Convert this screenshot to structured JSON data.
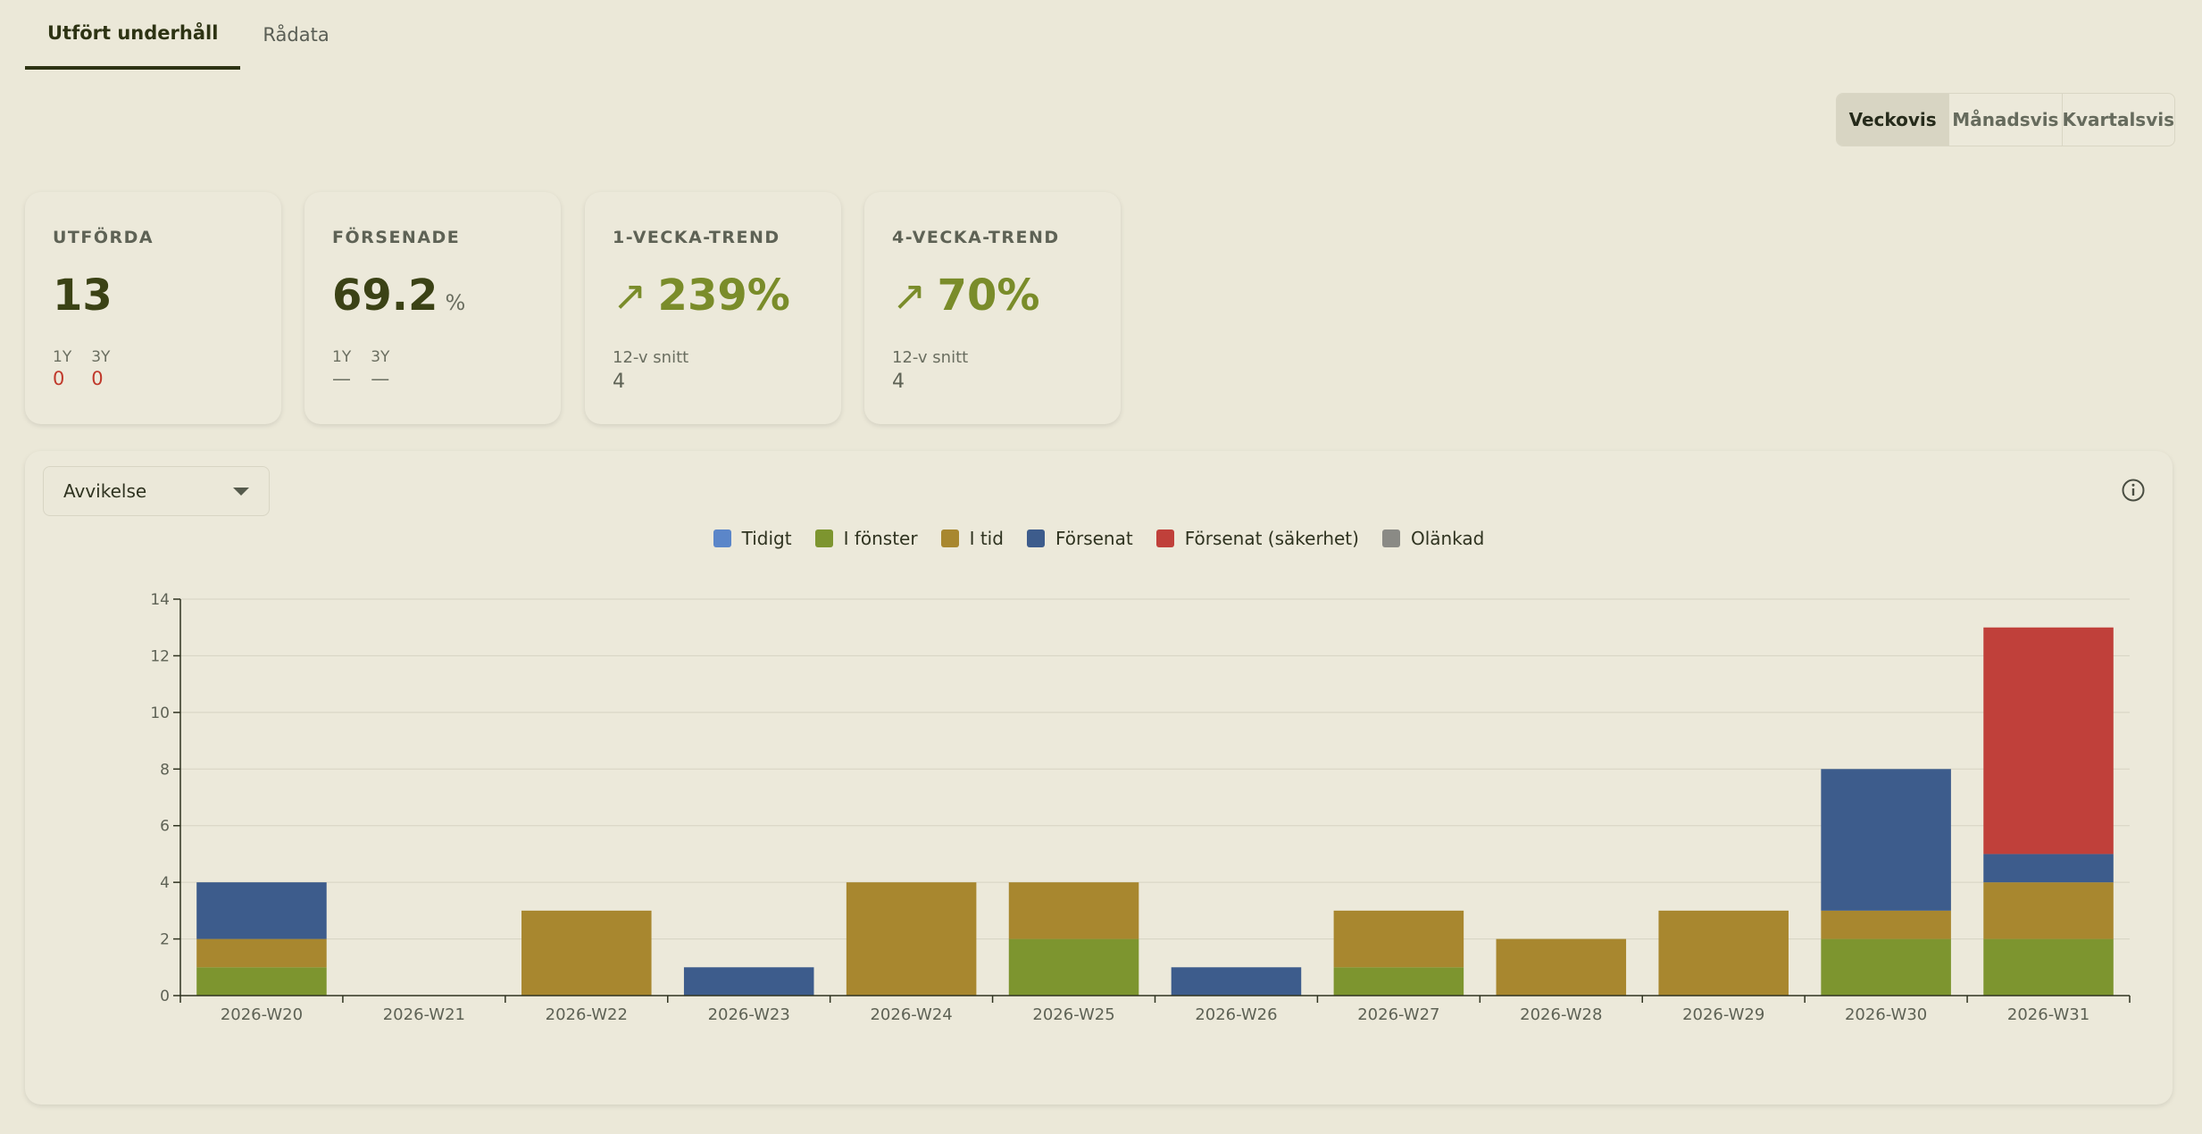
{
  "tabs": [
    {
      "label": "Utfört underhåll",
      "active": true
    },
    {
      "label": "Rådata",
      "active": false
    }
  ],
  "period": {
    "options": [
      "Veckovis",
      "Månadsvis",
      "Kvartalsvis"
    ],
    "selected": "Veckovis"
  },
  "cards": {
    "utforda": {
      "label": "UTFÖRDA",
      "value": "13",
      "y1_label": "1Y",
      "y3_label": "3Y",
      "y1_value": "0",
      "y3_value": "0"
    },
    "forsenade": {
      "label": "FÖRSENADE",
      "value": "69.2",
      "unit": "%",
      "y1_label": "1Y",
      "y3_label": "3Y",
      "y1_value": "—",
      "y3_value": "—"
    },
    "trend1": {
      "label": "1-VECKA-TREND",
      "arrow": "↗",
      "value": "239%",
      "sub_label": "12-v snitt",
      "sub_value": "4"
    },
    "trend4": {
      "label": "4-VECKA-TREND",
      "arrow": "↗",
      "value": "70%",
      "sub_label": "12-v snitt",
      "sub_value": "4"
    }
  },
  "chart_panel": {
    "select_value": "Avvikelse",
    "info_icon": "info-circle-icon"
  },
  "chart_data": {
    "type": "bar",
    "stacked": true,
    "categories": [
      "2026-W20",
      "2026-W21",
      "2026-W22",
      "2026-W23",
      "2026-W24",
      "2026-W25",
      "2026-W26",
      "2026-W27",
      "2026-W28",
      "2026-W29",
      "2026-W30",
      "2026-W31"
    ],
    "series": [
      {
        "name": "Tidigt",
        "color": "#5b86c9",
        "values": [
          0,
          0,
          0,
          0,
          0,
          0,
          0,
          0,
          0,
          0,
          0,
          0
        ]
      },
      {
        "name": "I fönster",
        "color": "#7d952f",
        "values": [
          1,
          0,
          0,
          0,
          0,
          2,
          0,
          1,
          0,
          0,
          2,
          2
        ]
      },
      {
        "name": "I tid",
        "color": "#a8872f",
        "values": [
          1,
          0,
          3,
          0,
          4,
          2,
          0,
          2,
          2,
          3,
          1,
          2
        ]
      },
      {
        "name": "Försenat",
        "color": "#3d5c8c",
        "values": [
          2,
          0,
          0,
          1,
          0,
          0,
          1,
          0,
          0,
          0,
          5,
          1
        ]
      },
      {
        "name": "Försenat (säkerhet)",
        "color": "#c0403a",
        "values": [
          0,
          0,
          0,
          0,
          0,
          0,
          0,
          0,
          0,
          0,
          0,
          8
        ]
      },
      {
        "name": "Olänkad",
        "color": "#8a8a85",
        "values": [
          0,
          0,
          0,
          0,
          0,
          0,
          0,
          0,
          0,
          0,
          0,
          0
        ]
      }
    ],
    "ylim": [
      0,
      14
    ],
    "yticks": [
      "0",
      "2",
      "4",
      "6",
      "8",
      "10",
      "12",
      "14"
    ],
    "grid": true,
    "legend": "top-center",
    "xlabel": "",
    "ylabel": ""
  }
}
